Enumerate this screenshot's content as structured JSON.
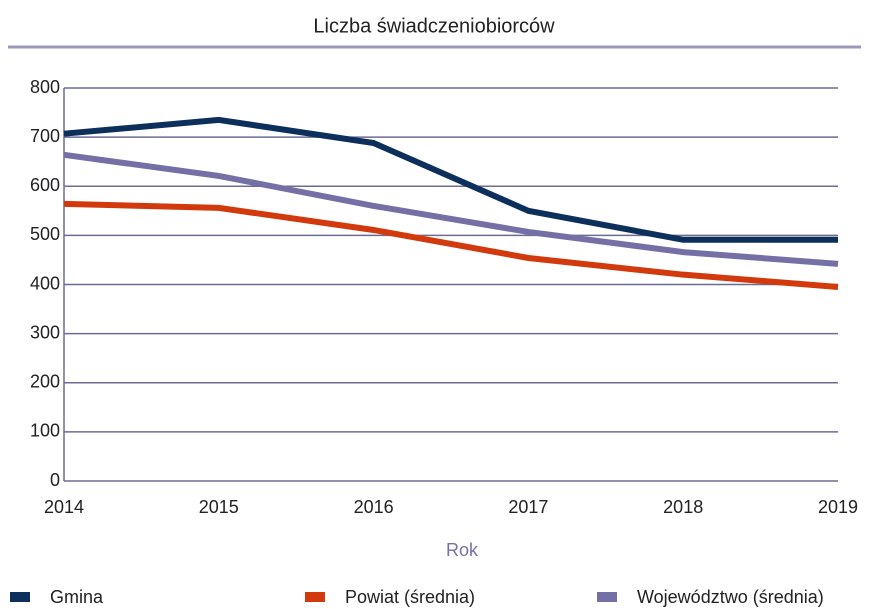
{
  "chart_data": {
    "type": "line",
    "title": "Liczba świadczeniobiorców",
    "x_label": "Rok",
    "categories": [
      "2014",
      "2015",
      "2016",
      "2017",
      "2018",
      "2019"
    ],
    "series": [
      {
        "name": "Gmina",
        "color": "#0d2f5c",
        "values": [
          707,
          735,
          688,
          550,
          491,
          491
        ]
      },
      {
        "name": "Powiat (średnia)",
        "color": "#d23a0e",
        "values": [
          564,
          556,
          511,
          454,
          420,
          395
        ]
      },
      {
        "name": "Województwo (średnia)",
        "color": "#7470a6",
        "values": [
          664,
          621,
          560,
          507,
          466,
          442
        ]
      }
    ],
    "ylim": [
      0,
      800
    ],
    "yticks": [
      0,
      100,
      200,
      300,
      400,
      500,
      600,
      700,
      800
    ],
    "grid": true
  }
}
